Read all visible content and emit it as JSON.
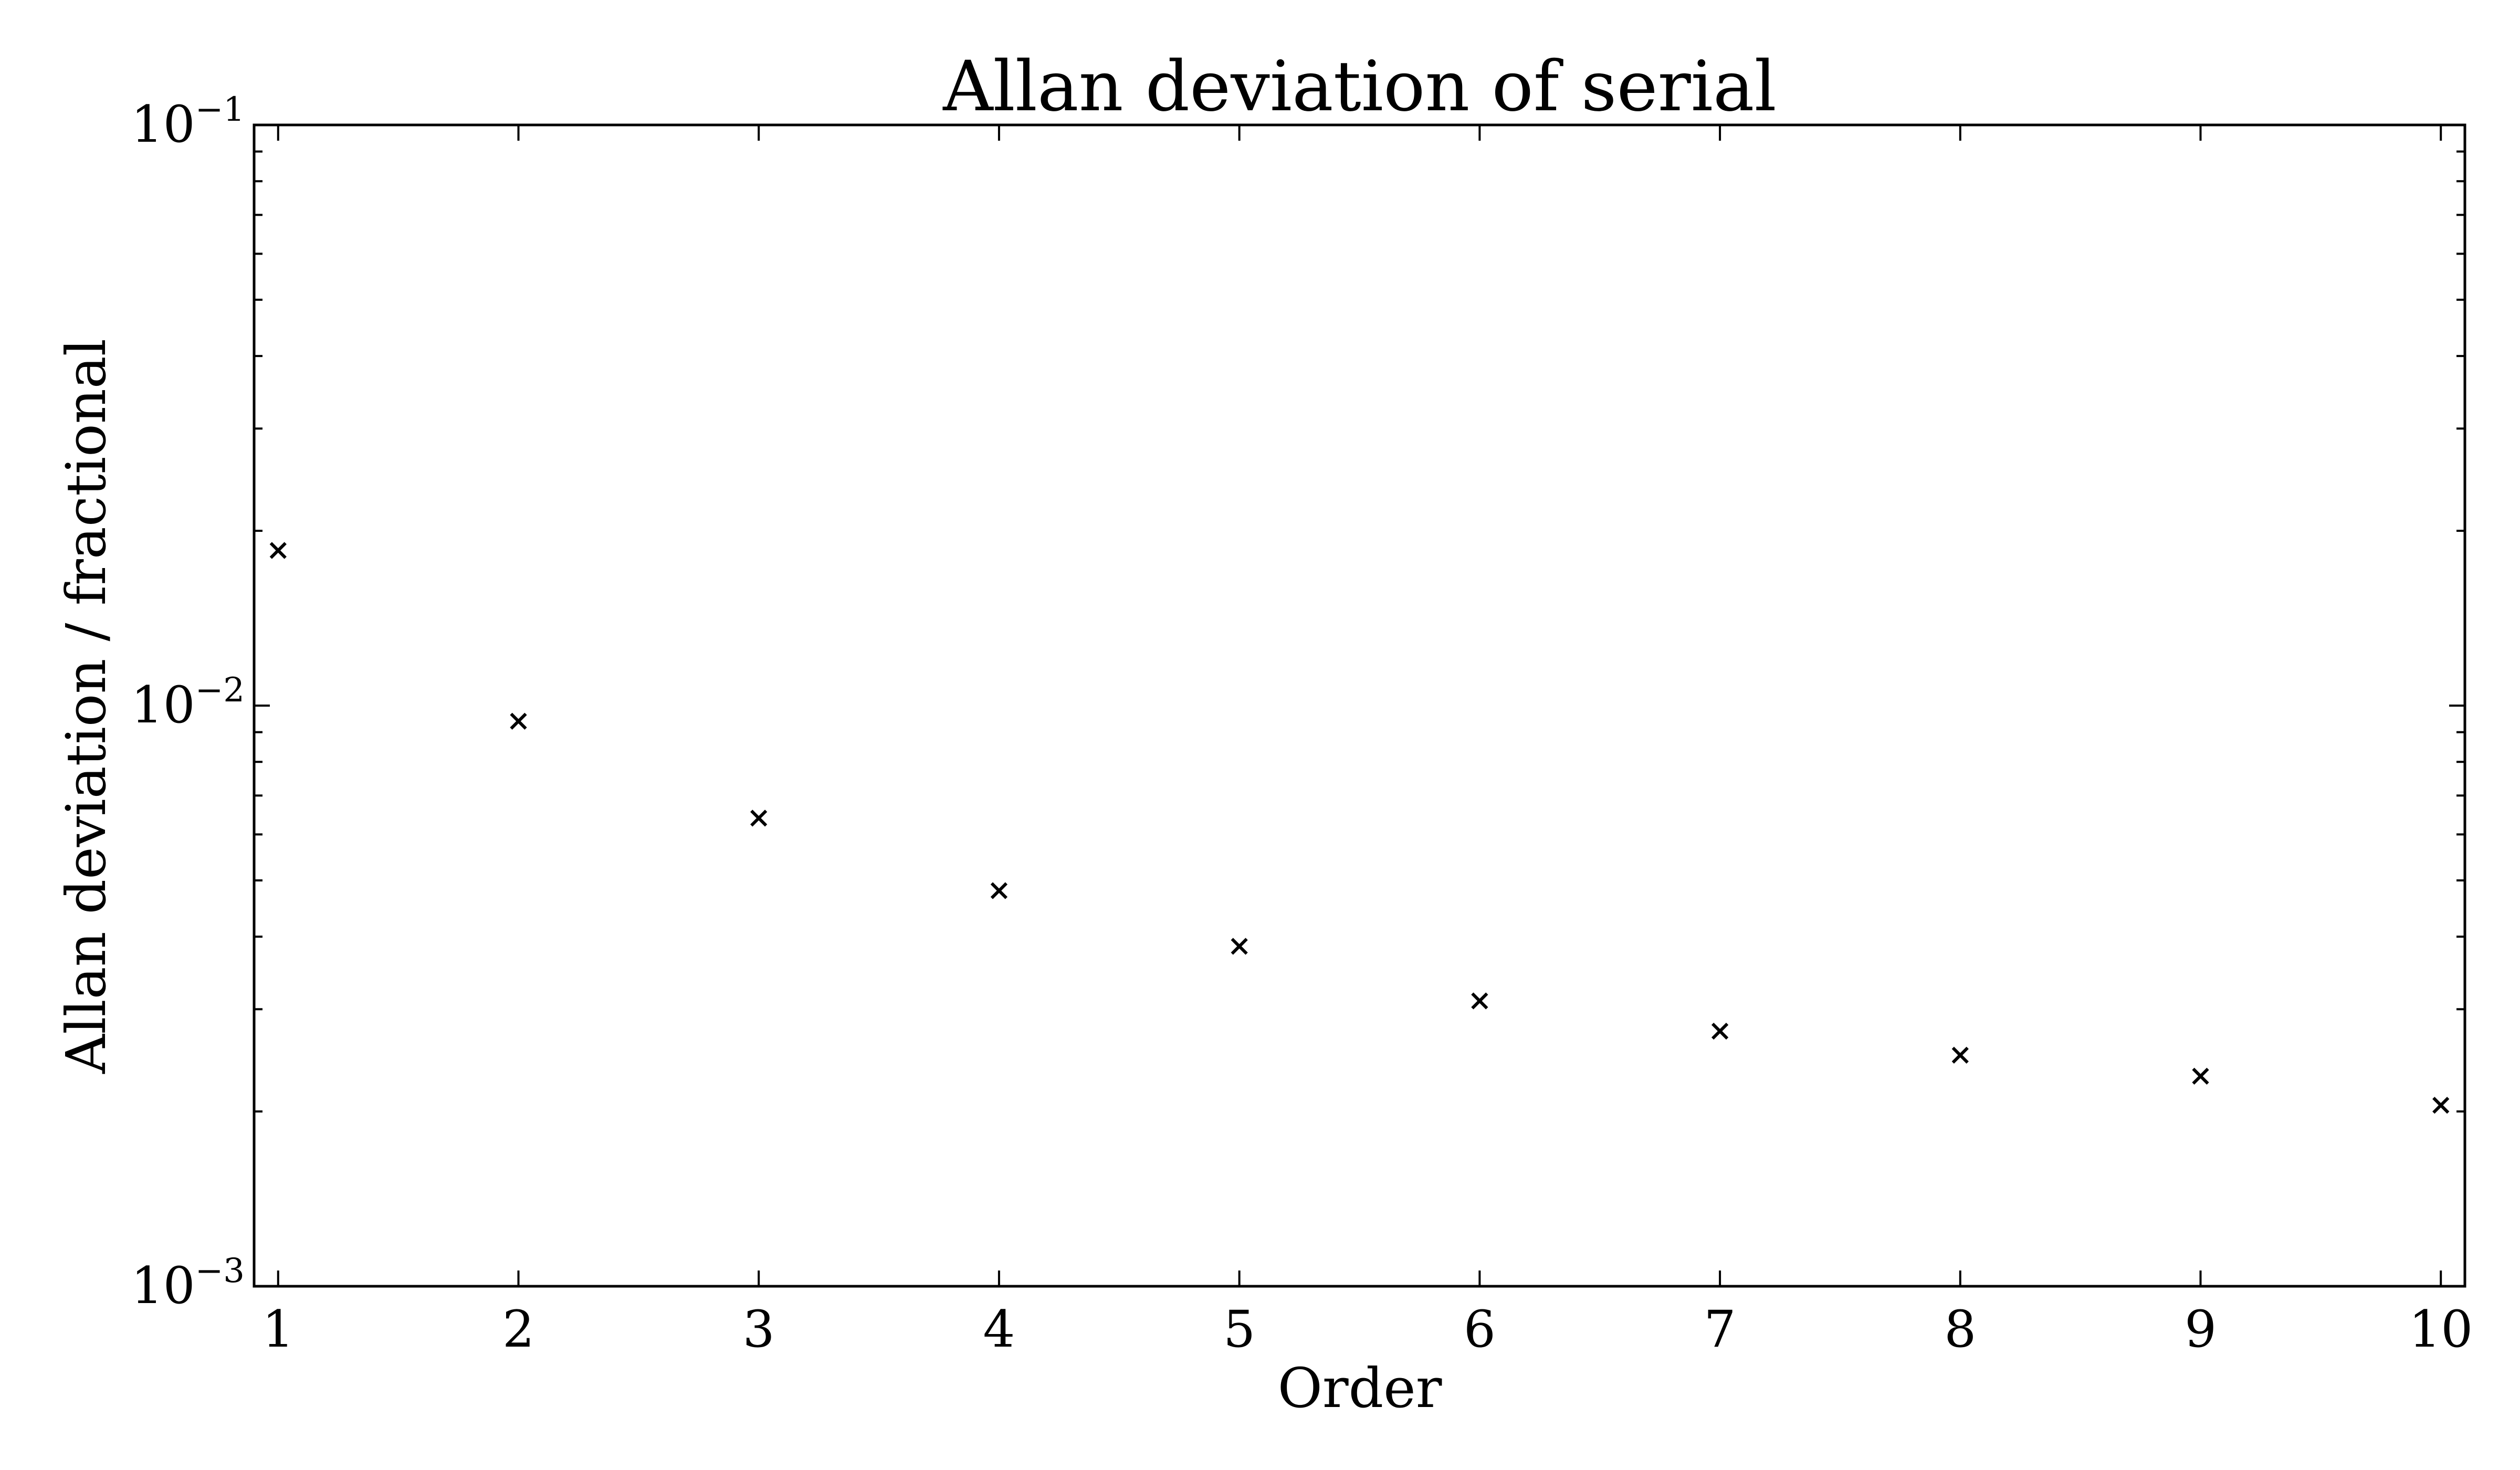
{
  "chart_data": {
    "type": "scatter",
    "title": "Allan deviation of serial",
    "xlabel": "Order",
    "ylabel": "Allan deviation / fractional",
    "x": [
      1,
      2,
      3,
      4,
      5,
      6,
      7,
      8,
      9,
      10
    ],
    "y": [
      0.0185,
      0.0094,
      0.0064,
      0.0048,
      0.00385,
      0.0031,
      0.00275,
      0.0025,
      0.0023,
      0.00205
    ],
    "xlim": [
      0.9,
      10.1
    ],
    "ylim": [
      0.001,
      0.1
    ],
    "yscale": "log",
    "xticks": [
      1,
      2,
      3,
      4,
      5,
      6,
      7,
      8,
      9,
      10
    ],
    "yticks": [
      {
        "value": 0.001,
        "base": "10",
        "exp": "−3"
      },
      {
        "value": 0.01,
        "base": "10",
        "exp": "−2"
      },
      {
        "value": 0.1,
        "base": "10",
        "exp": "−1"
      }
    ],
    "marker": "x",
    "marker_color": "#000000",
    "grid": false,
    "legend": "none"
  }
}
